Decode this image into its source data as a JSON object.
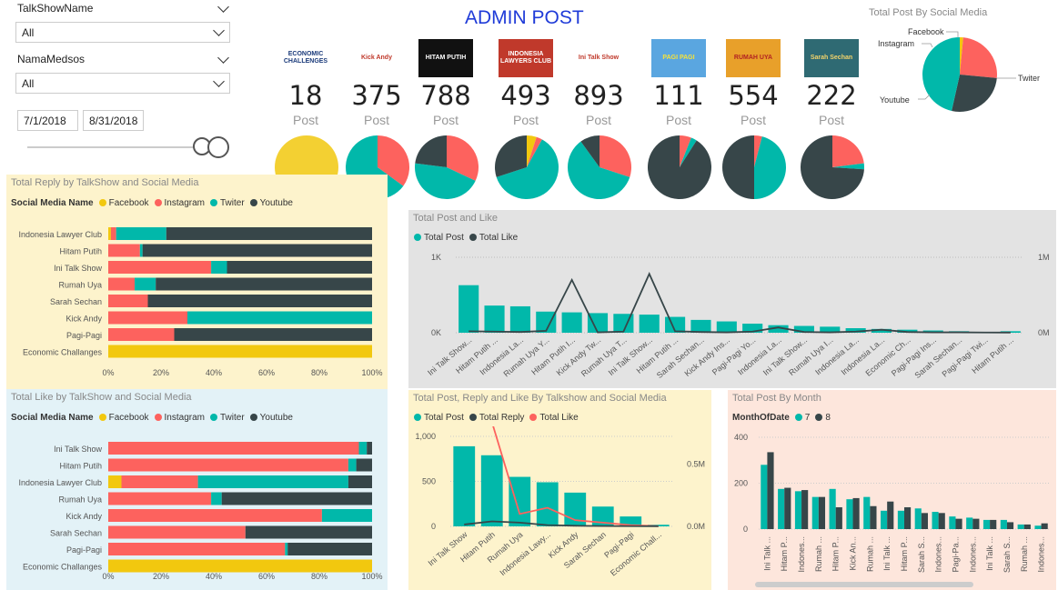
{
  "colors": {
    "facebook": "#F2C80F",
    "instagram": "#FD625E",
    "twiter": "#01B8AA",
    "youtube": "#374649",
    "title": "#1f3bd8"
  },
  "filters": {
    "talkshow_label": "TalkShowName",
    "talkshow_value": "All",
    "medsos_label": "NamaMedsos",
    "medsos_value": "All",
    "date_start": "7/1/2018",
    "date_end": "8/31/2018"
  },
  "header": {
    "title": "ADMIN POST"
  },
  "kpis": [
    {
      "logo": "ECONOMIC CHALLENGES",
      "logo_icon": "economic-challenges-logo",
      "value": "18",
      "label": "Post",
      "pie": [
        1,
        0,
        0,
        0
      ]
    },
    {
      "logo": "Kick Andy",
      "logo_icon": "kick-andy-logo",
      "value": "375",
      "label": "Post",
      "pie": [
        0,
        0.35,
        0.65,
        0
      ]
    },
    {
      "logo": "HITAM PUTIH",
      "logo_icon": "hitam-putih-logo",
      "value": "788",
      "label": "Post",
      "pie": [
        0,
        0.32,
        0.45,
        0.23
      ]
    },
    {
      "logo": "INDONESIA LAWYERS CLUB",
      "logo_icon": "ilc-logo",
      "value": "493",
      "label": "Post",
      "pie": [
        0.05,
        0.03,
        0.62,
        0.3
      ]
    },
    {
      "logo": "Ini Talk Show",
      "logo_icon": "ini-talk-show-logo",
      "value": "893",
      "label": "Post",
      "pie": [
        0,
        0.3,
        0.6,
        0.1
      ]
    },
    {
      "logo": "PAGI PAGI",
      "logo_icon": "pagi-pagi-logo",
      "value": "111",
      "label": "Post",
      "pie": [
        0,
        0.06,
        0.03,
        0.91
      ]
    },
    {
      "logo": "RUMAH UYA",
      "logo_icon": "rumah-uya-logo",
      "value": "554",
      "label": "Post",
      "pie": [
        0,
        0.04,
        0.46,
        0.5
      ]
    },
    {
      "logo": "Sarah Sechan",
      "logo_icon": "sarah-sechan-logo",
      "value": "222",
      "label": "Post",
      "pie": [
        0,
        0.23,
        0.03,
        0.74
      ]
    }
  ],
  "social_pie": {
    "title": "Total Post By Social Media",
    "slices": [
      {
        "name": "Facebook",
        "value": 0.015
      },
      {
        "name": "Instagram",
        "value": 0.25
      },
      {
        "name": "Youtube",
        "value": 0.27
      },
      {
        "name": "Twiter",
        "value": 0.465
      }
    ],
    "labels": {
      "facebook": "Facebook",
      "instagram": "Instagram",
      "youtube": "Youtube",
      "twiter": "Twiter"
    }
  },
  "reply_chart": {
    "title": "Total Reply by TalkShow and Social Media",
    "legend_title": "Social Media Name",
    "legend": [
      "Facebook",
      "Instagram",
      "Twiter",
      "Youtube"
    ],
    "x_ticks": [
      "0%",
      "20%",
      "40%",
      "60%",
      "80%",
      "100%"
    ],
    "rows": [
      {
        "name": "Indonesia Lawyer Club",
        "values": [
          1,
          2,
          19,
          78
        ]
      },
      {
        "name": "Hitam Putih",
        "values": [
          0,
          12,
          1,
          87
        ]
      },
      {
        "name": "Ini Talk Show",
        "values": [
          0,
          39,
          6,
          55
        ]
      },
      {
        "name": "Rumah Uya",
        "values": [
          0,
          10,
          8,
          82
        ]
      },
      {
        "name": "Sarah Sechan",
        "values": [
          0,
          15,
          0,
          85
        ]
      },
      {
        "name": "Kick Andy",
        "values": [
          0,
          30,
          70,
          0
        ]
      },
      {
        "name": "Pagi-Pagi",
        "values": [
          0,
          25,
          0,
          75
        ]
      },
      {
        "name": "Economic Challanges",
        "values": [
          100,
          0,
          0,
          0
        ]
      }
    ]
  },
  "like_chart": {
    "title": "Total Like by TalkShow and Social Media",
    "legend_title": "Social Media Name",
    "legend": [
      "Facebook",
      "Instagram",
      "Twiter",
      "Youtube"
    ],
    "x_ticks": [
      "0%",
      "20%",
      "40%",
      "60%",
      "80%",
      "100%"
    ],
    "rows": [
      {
        "name": "Ini Talk Show",
        "values": [
          0,
          95,
          3,
          2
        ]
      },
      {
        "name": "Hitam Putih",
        "values": [
          0,
          91,
          3,
          6
        ]
      },
      {
        "name": "Indonesia Lawyer Club",
        "values": [
          5,
          29,
          57,
          9
        ]
      },
      {
        "name": "Rumah Uya",
        "values": [
          0,
          39,
          4,
          57
        ]
      },
      {
        "name": "Kick Andy",
        "values": [
          0,
          81,
          19,
          0
        ]
      },
      {
        "name": "Sarah Sechan",
        "values": [
          0,
          52,
          0,
          48
        ]
      },
      {
        "name": "Pagi-Pagi",
        "values": [
          0,
          67,
          1,
          32
        ]
      },
      {
        "name": "Economic Challanges",
        "values": [
          100,
          0,
          0,
          0
        ]
      }
    ]
  },
  "chart_data": [
    {
      "type": "bar",
      "title": "Total Post and Like",
      "legend": [
        "Total Post",
        "Total Like"
      ],
      "y_left_ticks": [
        "1K",
        "0K"
      ],
      "y_right_ticks": [
        "1M",
        "0M"
      ],
      "categories": [
        "Ini Talk Show...",
        "Hitam Putih ...",
        "Indonesia La...",
        "Rumah Uya Y...",
        "Hitam Putih I...",
        "Kick Andy Tw...",
        "Rumah Uya T...",
        "Ini Talk Show...",
        "Hitam Putih ...",
        "Sarah Sechan...",
        "Kick Andy Ins...",
        "Pagi-Pagi Yo...",
        "Indonesia La...",
        "Ini Talk Show...",
        "Rumah Uya I...",
        "Indonesia La...",
        "Indonesia La...",
        "Economic Ch...",
        "Pagi-Pagi Ins...",
        "Sarah Sechan...",
        "Pagi-Pagi Twi...",
        "Hitam Putih ..."
      ],
      "series": [
        {
          "name": "Total Post",
          "values": [
            630,
            360,
            350,
            280,
            270,
            260,
            250,
            240,
            210,
            170,
            150,
            120,
            100,
            90,
            80,
            60,
            50,
            40,
            30,
            20,
            10,
            20
          ]
        },
        {
          "name": "Total Like",
          "values": [
            20000,
            15000,
            10000,
            25000,
            700000,
            5000,
            15000,
            780000,
            20000,
            10000,
            5000,
            15000,
            70000,
            10000,
            5000,
            15000,
            40000,
            10000,
            5000,
            5000,
            3000,
            2000
          ]
        }
      ]
    },
    {
      "type": "bar",
      "title": "Total Post, Reply and Like By Talkshow and Social Media",
      "legend": [
        "Total Post",
        "Total Reply",
        "Total Like"
      ],
      "y_left_ticks": [
        "1,000",
        "500",
        "0"
      ],
      "y_right_ticks": [
        "0.5M",
        "0.0M"
      ],
      "categories": [
        "Ini Talk Show",
        "Hitam Putih",
        "Rumah Uya",
        "Indonesia Lawy...",
        "Kick Andy",
        "Sarah Sechan",
        "Pagi-Pagi",
        "Economic Chall..."
      ],
      "series": [
        {
          "name": "Total Post",
          "values": [
            890,
            790,
            550,
            490,
            375,
            220,
            110,
            18
          ]
        },
        {
          "name": "Total Reply",
          "values": [
            15000,
            40000,
            30000,
            10000,
            5000,
            3000,
            2000,
            1000
          ]
        },
        {
          "name": "Total Like",
          "values": [
            880000,
            840000,
            100000,
            150000,
            50000,
            30000,
            10000,
            2000
          ]
        }
      ]
    },
    {
      "type": "bar",
      "title": "Total Post By Month",
      "legend_title": "MonthOfDate",
      "legend": [
        "7",
        "8"
      ],
      "y_ticks": [
        "400",
        "200",
        "0"
      ],
      "categories": [
        "Ini Talk ...",
        "Hitam P...",
        "Indones...",
        "Rumah ...",
        "Hitam P...",
        "Kick An...",
        "Rumah ...",
        "Ini Talk ...",
        "Hitam P...",
        "Sarah S...",
        "Indones...",
        "Pagi-Pa...",
        "Indones...",
        "Ini Talk ...",
        "Sarah S...",
        "Rumah ...",
        "Indones..."
      ],
      "series": [
        {
          "name": "7",
          "values": [
            280,
            175,
            165,
            140,
            175,
            130,
            140,
            80,
            80,
            90,
            75,
            55,
            50,
            40,
            40,
            20,
            15
          ]
        },
        {
          "name": "8",
          "values": [
            335,
            180,
            170,
            140,
            95,
            135,
            100,
            120,
            95,
            70,
            70,
            45,
            45,
            40,
            30,
            20,
            25
          ]
        }
      ]
    }
  ]
}
